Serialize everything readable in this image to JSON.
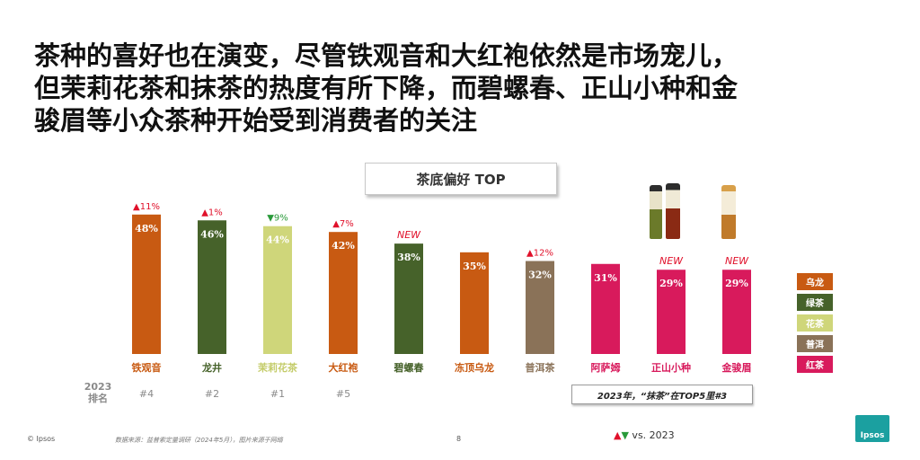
{
  "title_lines": [
    "茶种的喜好也在演变，尽管铁观音和大红袍依然是市场宠儿，",
    "但茉莉花茶和抹茶的热度有所下降，而碧螺春、正山小种和金",
    "骏眉等小众茶种开始受到消费者的关注"
  ],
  "chart_title": "茶底偏好 TOP",
  "chart_data": {
    "type": "bar",
    "title": "茶底偏好 TOP",
    "ylim": [
      0,
      60
    ],
    "categories": [
      "铁观音",
      "龙井",
      "茉莉花茶",
      "大红袍",
      "碧螺春",
      "冻顶乌龙",
      "普洱茶",
      "阿萨姆",
      "正山小种",
      "金骏眉"
    ],
    "values": [
      48,
      46,
      44,
      42,
      38,
      35,
      32,
      31,
      29,
      29
    ],
    "value_labels": [
      "48%",
      "46%",
      "44%",
      "42%",
      "38%",
      "35%",
      "32%",
      "31%",
      "29%",
      "29%"
    ],
    "tea_type": [
      "乌龙",
      "绿茶",
      "花茶",
      "乌龙",
      "绿茶",
      "乌龙",
      "普洱",
      "红茶",
      "红茶",
      "红茶"
    ],
    "changes": [
      "▲11%",
      "▲1%",
      "▼9%",
      "▲7%",
      "NEW",
      "",
      "▲12%",
      "",
      "NEW",
      "NEW"
    ],
    "change_direction": [
      "up",
      "up",
      "down",
      "up",
      "new",
      "",
      "up",
      "",
      "new",
      "new"
    ],
    "rank_2023": [
      "#4",
      "#2",
      "#1",
      "#5",
      "",
      "",
      "",
      "",
      "",
      ""
    ],
    "label_colors": [
      "#c85a12",
      "#46622a",
      "#c4cc6a",
      "#c85a12",
      "#46622a",
      "#c85a12",
      "#8a7258",
      "#d81a5c",
      "#d81a5c",
      "#d81a5c"
    ],
    "colors": {
      "乌龙": "#c85a12",
      "绿茶": "#46622a",
      "花茶": "#cfd67a",
      "普洱": "#8a7258",
      "红茶": "#d81a5c"
    }
  },
  "legend": [
    {
      "label": "乌龙",
      "color": "#c85a12"
    },
    {
      "label": "绿茶",
      "color": "#46622a"
    },
    {
      "label": "花茶",
      "color": "#cfd67a"
    },
    {
      "label": "普洱",
      "color": "#8a7258"
    },
    {
      "label": "红茶",
      "color": "#d81a5c"
    }
  ],
  "year_label": "2023",
  "rank_label": "排名",
  "note": "2023年，“抹茶”在TOP5里#3",
  "footer": {
    "copyright": "© Ipsos",
    "source": "数据来源：益普索定量调研（2024年5月），图片来源于网络",
    "page": "8",
    "vs_up": "▲",
    "vs_down": "▼",
    "vs_text": " vs. 2023",
    "logo": "Ipsos"
  }
}
